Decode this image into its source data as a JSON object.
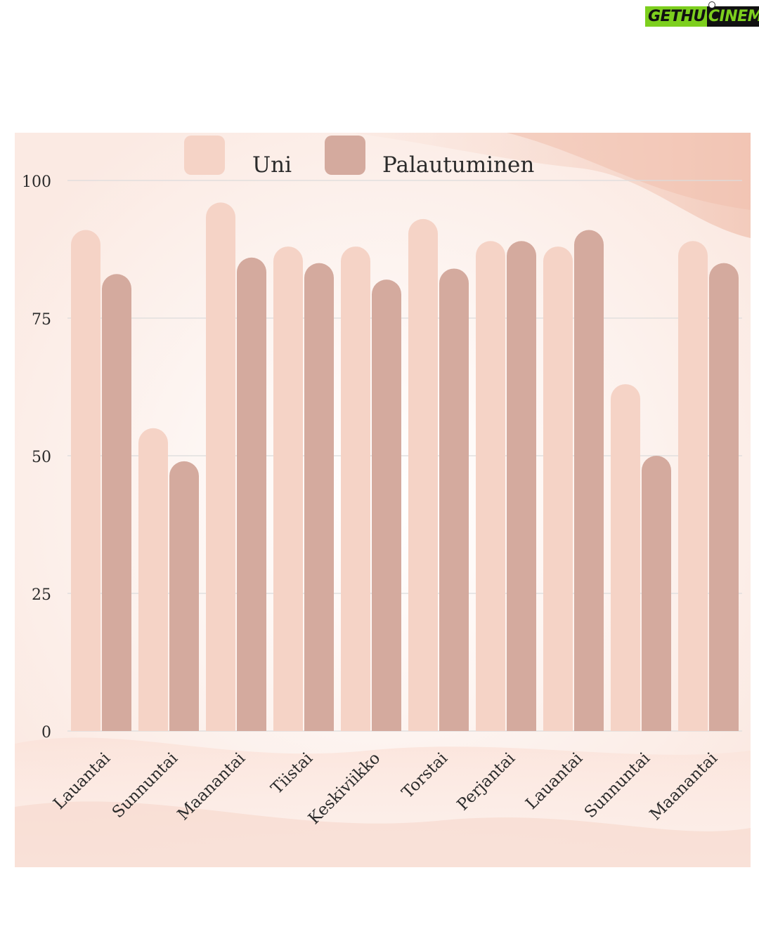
{
  "watermark": {
    "part1": "GETHU",
    "part2": "CINEMA"
  },
  "chart_data": {
    "type": "bar",
    "title": "",
    "xlabel": "",
    "ylabel": "",
    "ylim": [
      0,
      100
    ],
    "yticks": [
      0,
      25,
      50,
      75,
      100
    ],
    "grid": true,
    "legend_position": "top",
    "categories": [
      "Lauantai",
      "Sunnuntai",
      "Maanantai",
      "Tiistai",
      "Keskiviikko",
      "Torstai",
      "Perjantai",
      "Lauantai",
      "Sunnuntai",
      "Maanantai"
    ],
    "series": [
      {
        "name": "Uni",
        "color": "#f5d3c6",
        "values": [
          91,
          55,
          96,
          88,
          88,
          93,
          89,
          88,
          63,
          89
        ]
      },
      {
        "name": "Palautuminen",
        "color": "#d4aa9e",
        "values": [
          83,
          49,
          86,
          85,
          82,
          84,
          89,
          91,
          50,
          85
        ]
      }
    ],
    "colors": {
      "grid": "#dcdcdc",
      "text": "#2b2b2b",
      "background_wash": "#f8ddd2"
    }
  }
}
